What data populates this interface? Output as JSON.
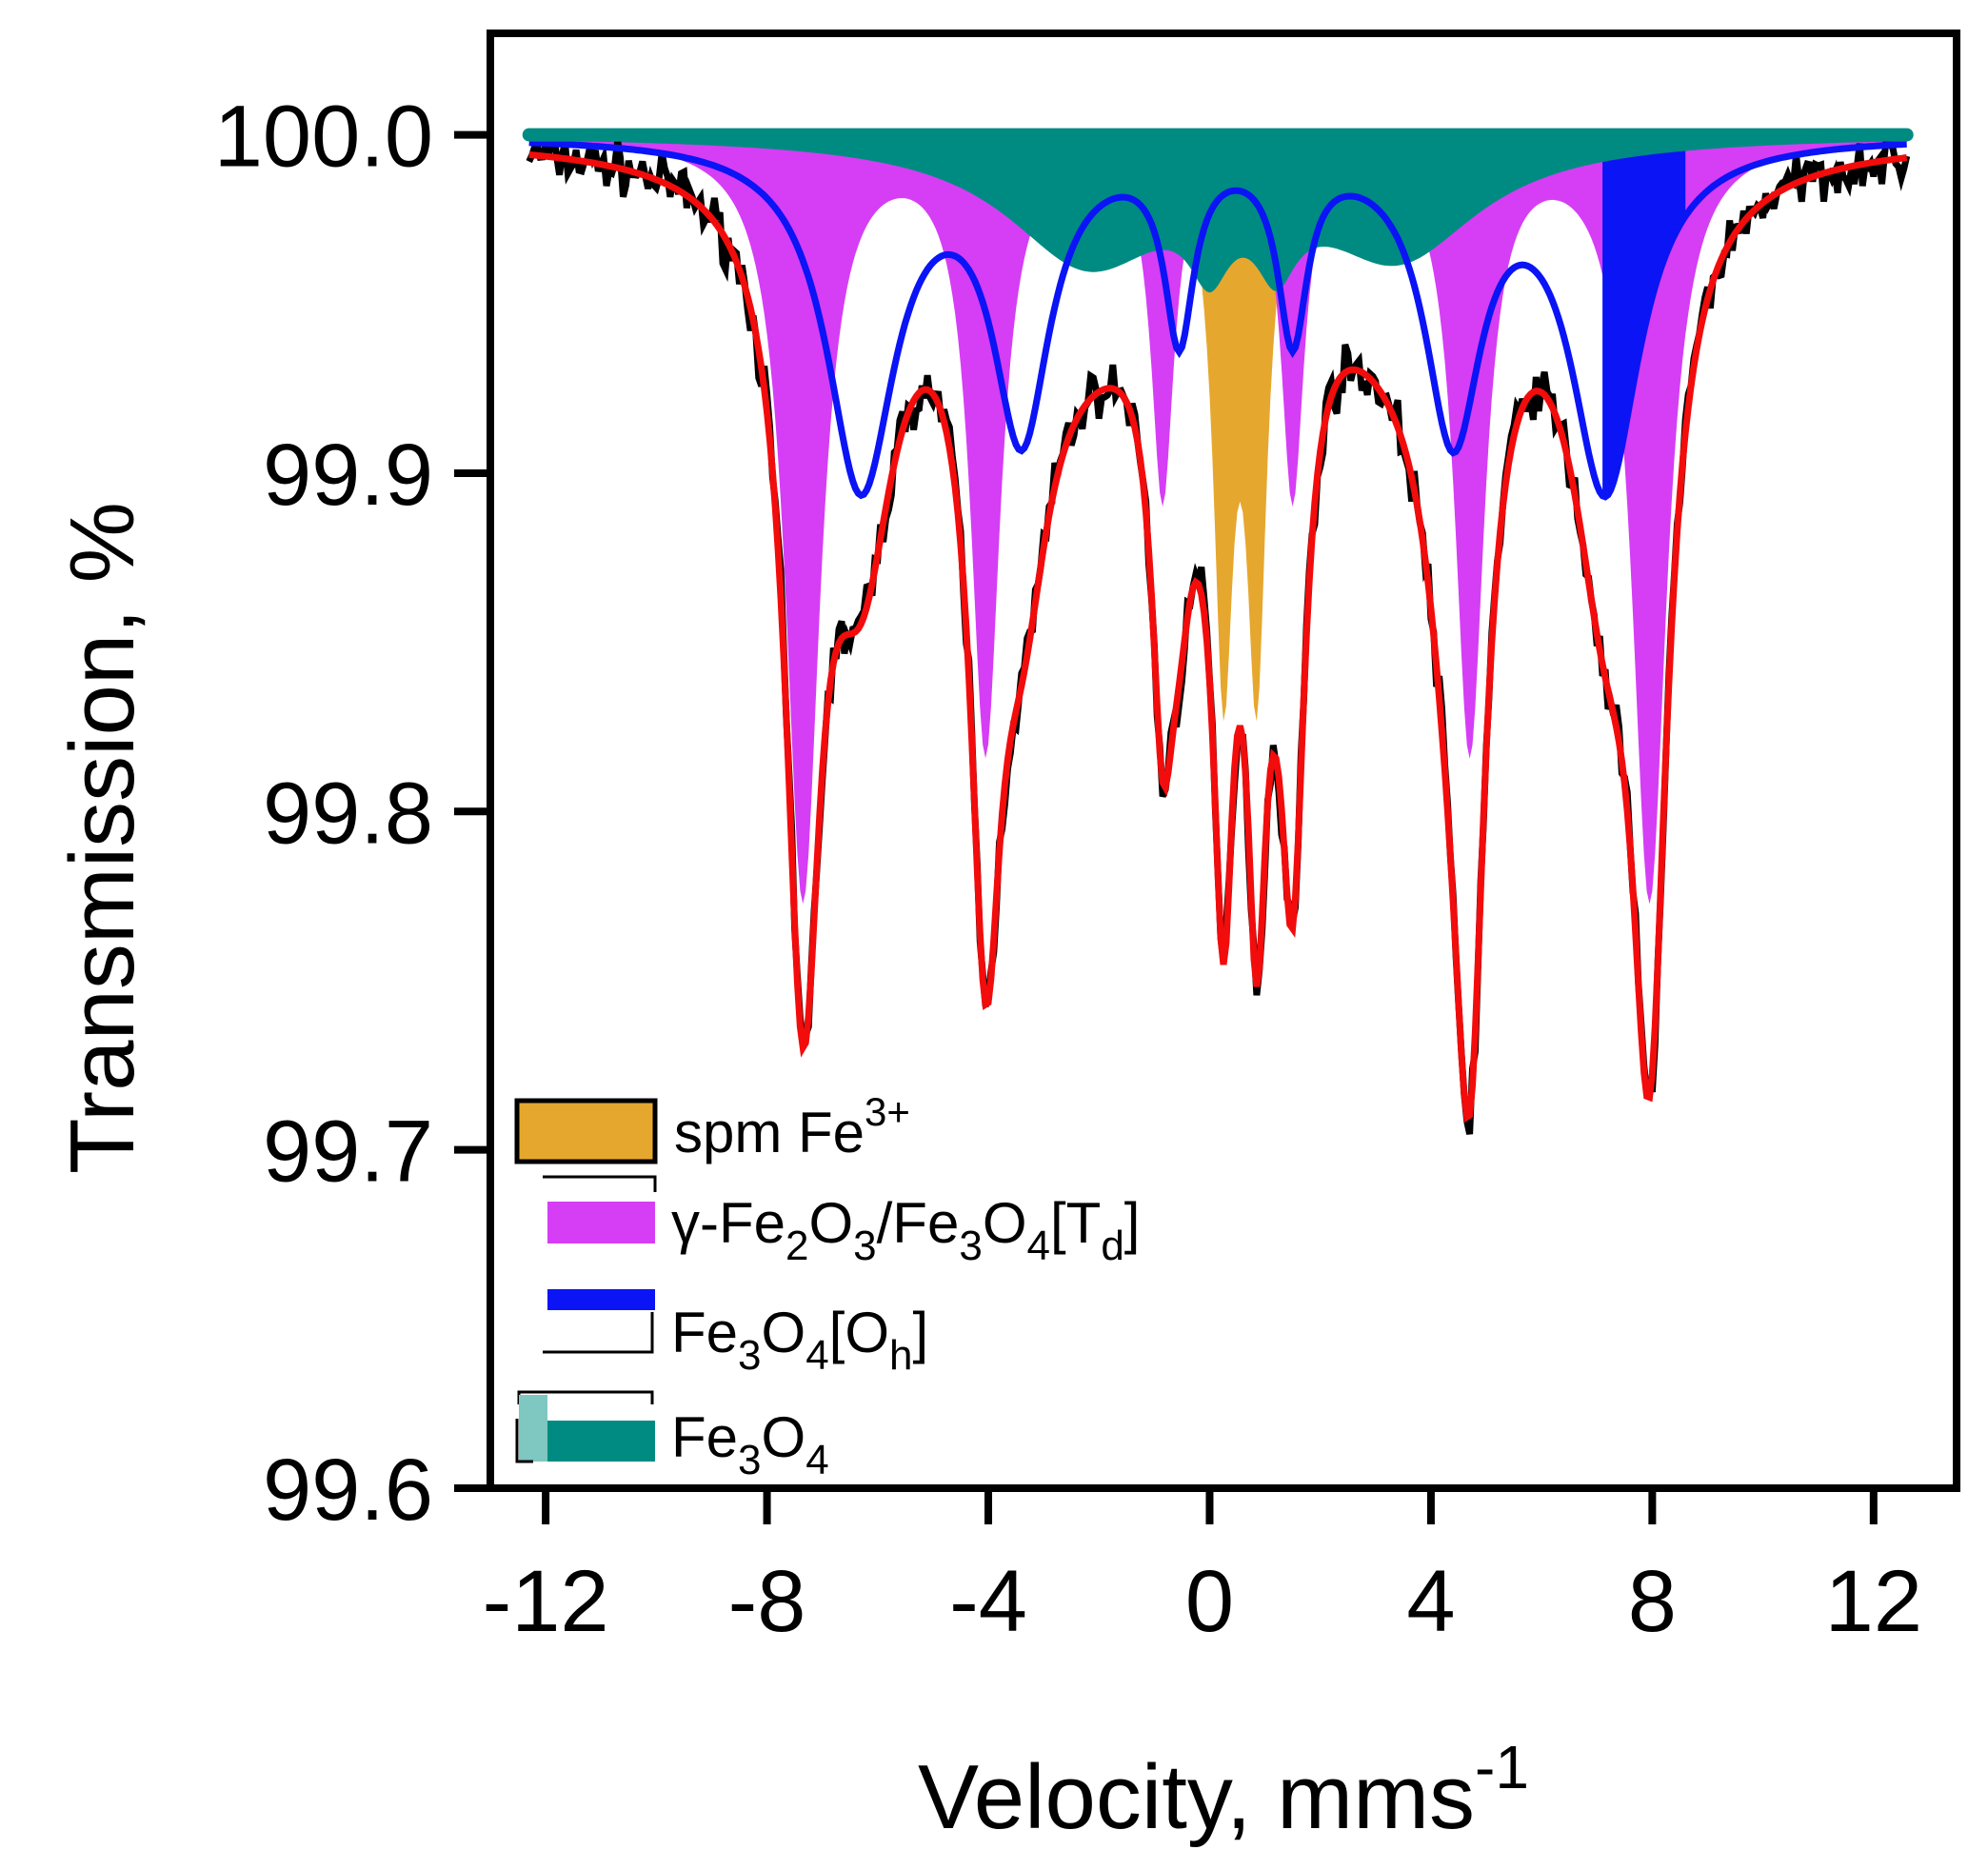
{
  "chart_data": {
    "type": "line",
    "title": "",
    "xlabel": "Velocity, mms",
    "xlabel_superscript": "-1",
    "ylabel": "Transmission, %",
    "xlim": [
      -13.0,
      13.5
    ],
    "ylim": [
      99.6,
      100.03
    ],
    "x_ticks": [
      -12,
      -8,
      -4,
      0,
      4,
      8,
      12
    ],
    "x_tick_labels": [
      "-12",
      "-8",
      "-4",
      "0",
      "4",
      "8",
      "12"
    ],
    "y_ticks": [
      99.6,
      99.7,
      99.8,
      99.9,
      100.0
    ],
    "y_tick_labels": [
      "99.6",
      "99.7",
      "99.8",
      "99.9",
      "100.0"
    ],
    "grid": false,
    "x_range": [
      -12.3,
      12.6
    ],
    "x_step": 0.05,
    "components": [
      {
        "name": "spm Fe3+",
        "color": "#e6a72e",
        "lines": [
          {
            "x": 0.25,
            "depth": 0.155,
            "hwhm": 0.22
          },
          {
            "x": 0.85,
            "depth": 0.155,
            "hwhm": 0.22
          }
        ]
      },
      {
        "name": "γ-Fe2O3/Fe3O4[Td]",
        "color": "#d53ef5",
        "lines": [
          {
            "x": -7.35,
            "depth": 0.225,
            "hwhm": 0.38
          },
          {
            "x": -4.05,
            "depth": 0.18,
            "hwhm": 0.33
          },
          {
            "x": -0.85,
            "depth": 0.105,
            "hwhm": 0.25
          },
          {
            "x": 1.5,
            "depth": 0.105,
            "hwhm": 0.25
          },
          {
            "x": 4.7,
            "depth": 0.18,
            "hwhm": 0.33
          },
          {
            "x": 7.95,
            "depth": 0.225,
            "hwhm": 0.38
          }
        ]
      },
      {
        "name": "Fe3O4[Oh]",
        "color": "#0a14f5",
        "lines": [
          {
            "x": -6.3,
            "depth": 0.102,
            "hwhm": 0.75
          },
          {
            "x": -3.4,
            "depth": 0.085,
            "hwhm": 0.62
          },
          {
            "x": -0.55,
            "depth": 0.055,
            "hwhm": 0.32
          },
          {
            "x": 1.5,
            "depth": 0.055,
            "hwhm": 0.32
          },
          {
            "x": 4.4,
            "depth": 0.085,
            "hwhm": 0.62
          },
          {
            "x": 7.15,
            "depth": 0.102,
            "hwhm": 0.75
          }
        ]
      },
      {
        "name": "Fe3O4",
        "color": "#008b82",
        "lines": [
          {
            "x": -2.2,
            "depth": 0.036,
            "hwhm": 1.8
          },
          {
            "x": 0.0,
            "depth": 0.022,
            "hwhm": 0.45
          },
          {
            "x": 1.2,
            "depth": 0.022,
            "hwhm": 0.45
          },
          {
            "x": 3.4,
            "depth": 0.034,
            "hwhm": 1.8
          }
        ]
      }
    ],
    "fit_color": "#f20c0c",
    "data_color": "#000000",
    "noise": {
      "amplitude": 0.007,
      "seed": 7
    },
    "legend": {
      "placement": "bottom-left",
      "entries": [
        {
          "label": "spm Fe",
          "sup": "3+",
          "color": "#e6a72e"
        },
        {
          "label": "γ-Fe",
          "sub1": "2",
          "mid": "O",
          "sub2": "3",
          "rest": "/Fe",
          "sub3": "3",
          "rest2": "O",
          "sub4": "4",
          "rest3": "[T",
          "sub5": "d",
          "rest4": "]",
          "color": "#d53ef5"
        },
        {
          "label": "Fe",
          "sub1": "3",
          "mid": "O",
          "sub2": "4",
          "rest": "[O",
          "sub3": "h",
          "rest2": "]",
          "color": "#0a14f5"
        },
        {
          "label": "Fe",
          "sub1": "3",
          "mid": "O",
          "sub2": "4",
          "color": "#008b82"
        }
      ]
    }
  }
}
